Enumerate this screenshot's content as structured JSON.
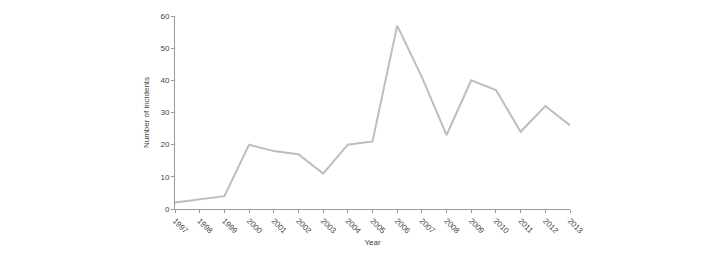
{
  "chart_data": {
    "type": "line",
    "x_label": "Year",
    "y_label": "Number of incidents",
    "categories": [
      "1997",
      "1998",
      "1999",
      "2000",
      "2001",
      "2002",
      "2003",
      "2004",
      "2005",
      "2006",
      "2007",
      "2008",
      "2009",
      "2010",
      "2011",
      "2012",
      "2013"
    ],
    "values": [
      2,
      3,
      4,
      20,
      18,
      17,
      11,
      20,
      21,
      57,
      41,
      23,
      40,
      37,
      24,
      32,
      26
    ],
    "color": "#bdbdbd",
    "ylim": [
      0,
      60
    ],
    "yticks": [
      0,
      10,
      20,
      30,
      40,
      50,
      60
    ],
    "grid": false
  }
}
